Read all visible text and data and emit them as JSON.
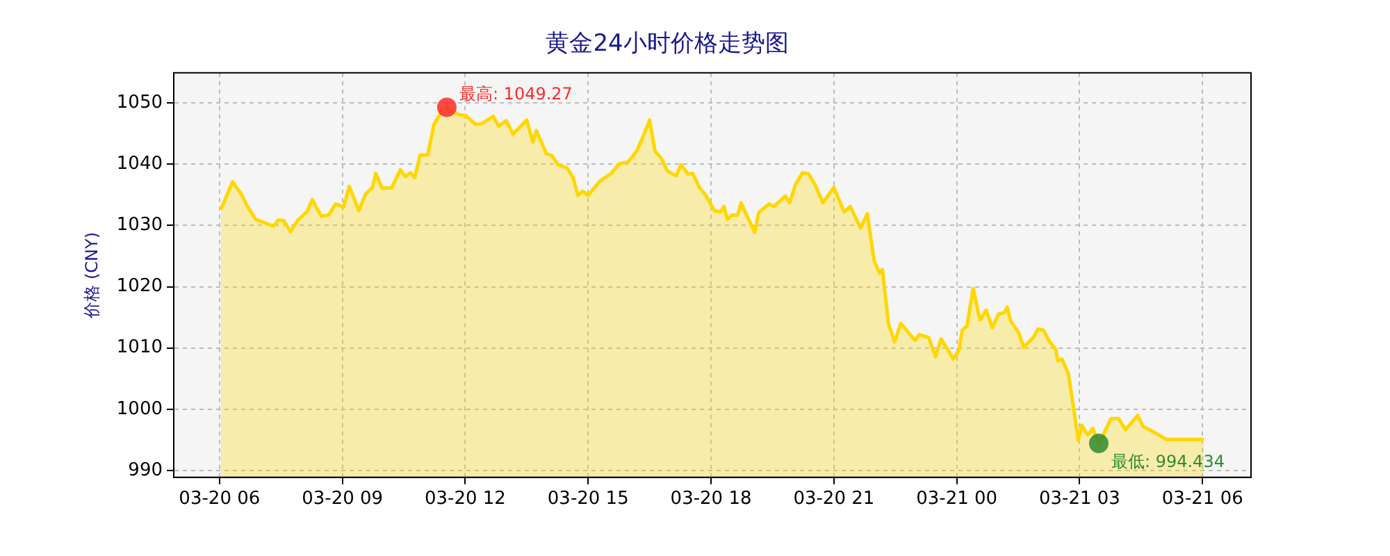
{
  "chart_data": {
    "type": "area",
    "title": "黄金24小时价格走势图",
    "ylabel": "价格 (CNY)",
    "xlim": [
      "--03-20T04:53",
      "--03-21T07:11"
    ],
    "xticks": [
      {
        "value": "--03-20T06:00",
        "label": "03-20 06"
      },
      {
        "value": "--03-20T09:00",
        "label": "03-20 09"
      },
      {
        "value": "--03-20T12:00",
        "label": "03-20 12"
      },
      {
        "value": "--03-20T15:00",
        "label": "03-20 15"
      },
      {
        "value": "--03-20T18:00",
        "label": "03-20 18"
      },
      {
        "value": "--03-20T21:00",
        "label": "03-20 21"
      },
      {
        "value": "--03-21T00:00",
        "label": "03-21 00"
      },
      {
        "value": "--03-21T03:00",
        "label": "03-21 03"
      },
      {
        "value": "--03-21T06:00",
        "label": "03-21 06"
      }
    ],
    "ylim": [
      988.9,
      1054.9
    ],
    "yticks": [
      990,
      1000,
      1010,
      1020,
      1030,
      1040,
      1050
    ],
    "grid": true,
    "legend": false,
    "series": [
      {
        "color": "#ffd700",
        "x": [
          "--03-20T06:02",
          "--03-20T06:19",
          "--03-20T06:31",
          "--03-20T06:41",
          "--03-20T06:53",
          "--03-20T07:19",
          "--03-20T07:26",
          "--03-20T07:34",
          "--03-20T07:44",
          "--03-20T07:55",
          "--03-20T08:08",
          "--03-20T08:16",
          "--03-20T08:29",
          "--03-20T08:40",
          "--03-20T08:50",
          "--03-20T09:02",
          "--03-20T09:10",
          "--03-20T09:24",
          "--03-20T09:34",
          "--03-20T09:44",
          "--03-20T09:49",
          "--03-20T09:58",
          "--03-20T10:12",
          "--03-20T10:25",
          "--03-20T10:32",
          "--03-20T10:40",
          "--03-20T10:46",
          "--03-20T10:54",
          "--03-20T11:05",
          "--03-20T11:14",
          "--03-20T11:25",
          "--03-20T11:33",
          "--03-20T11:50",
          "--03-20T12:01",
          "--03-20T12:15",
          "--03-20T12:24",
          "--03-20T12:41",
          "--03-20T12:49",
          "--03-20T13:00",
          "--03-20T13:10",
          "--03-20T13:30",
          "--03-20T13:39",
          "--03-20T13:44",
          "--03-20T13:59",
          "--03-20T14:07",
          "--03-20T14:16",
          "--03-20T14:29",
          "--03-20T14:38",
          "--03-20T14:45",
          "--03-20T14:52",
          "--03-20T15:00",
          "--03-20T15:17",
          "--03-20T15:34",
          "--03-20T15:46",
          "--03-20T15:58",
          "--03-20T16:11",
          "--03-20T16:22",
          "--03-20T16:30",
          "--03-20T16:38",
          "--03-20T16:47",
          "--03-20T16:56",
          "--03-20T17:09",
          "--03-20T17:16",
          "--03-20T17:26",
          "--03-20T17:33",
          "--03-20T17:43",
          "--03-20T17:53",
          "--03-20T18:05",
          "--03-20T18:14",
          "--03-20T18:19",
          "--03-20T18:24",
          "--03-20T18:31",
          "--03-20T18:39",
          "--03-20T18:44",
          "--03-20T18:55",
          "--03-20T19:04",
          "--03-20T19:10",
          "--03-20T19:25",
          "--03-20T19:32",
          "--03-20T19:49",
          "--03-20T19:55",
          "--03-20T20:04",
          "--03-20T20:14",
          "--03-20T20:23",
          "--03-20T20:33",
          "--03-20T20:44",
          "--03-20T21:00",
          "--03-20T21:15",
          "--03-20T21:24",
          "--03-20T21:39",
          "--03-20T21:49",
          "--03-20T21:59",
          "--03-20T22:07",
          "--03-20T22:11",
          "--03-20T22:20",
          "--03-20T22:29",
          "--03-20T22:38",
          "--03-20T22:59",
          "--03-20T23:05",
          "--03-20T23:19",
          "--03-20T23:29",
          "--03-20T23:37",
          "--03-20T23:55",
          "--03-21T00:03",
          "--03-21T00:08",
          "--03-21T00:15",
          "--03-21T00:24",
          "--03-21T00:34",
          "--03-21T00:43",
          "--03-21T00:52",
          "--03-21T01:01",
          "--03-21T01:10",
          "--03-21T01:14",
          "--03-21T01:19",
          "--03-21T01:31",
          "--03-21T01:38",
          "--03-21T01:52",
          "--03-21T01:59",
          "--03-21T02:07",
          "--03-21T02:16",
          "--03-21T02:25",
          "--03-21T02:28",
          "--03-21T02:34",
          "--03-21T02:43",
          "--03-21T02:52",
          "--03-21T02:58",
          "--03-21T03:03",
          "--03-21T03:12",
          "--03-21T03:19",
          "--03-21T03:28",
          "--03-21T03:37",
          "--03-21T03:46",
          "--03-21T03:57",
          "--03-21T04:07",
          "--03-21T04:16",
          "--03-21T04:25",
          "--03-21T04:33",
          "--03-21T04:45",
          "--03-21T05:07",
          "--03-21T06:02"
        ],
        "values": [
          1032.6,
          1037.1,
          1035.3,
          1033.1,
          1031.0,
          1029.9,
          1030.9,
          1030.8,
          1029.0,
          1030.9,
          1032.2,
          1034.2,
          1031.5,
          1031.7,
          1033.5,
          1033.0,
          1036.4,
          1032.4,
          1035.1,
          1036.2,
          1038.5,
          1036.1,
          1036.1,
          1039.1,
          1038.0,
          1038.6,
          1037.8,
          1041.5,
          1041.5,
          1046.4,
          1048.6,
          1049.27,
          1048.1,
          1047.9,
          1046.5,
          1046.6,
          1047.8,
          1046.2,
          1047.1,
          1044.9,
          1047.2,
          1043.6,
          1045.5,
          1041.7,
          1041.4,
          1039.9,
          1039.4,
          1037.8,
          1034.9,
          1035.6,
          1034.9,
          1037.2,
          1038.5,
          1040.1,
          1040.3,
          1042.1,
          1044.9,
          1047.2,
          1042.1,
          1041.0,
          1038.9,
          1038.1,
          1039.9,
          1038.4,
          1038.5,
          1036.2,
          1034.8,
          1032.4,
          1032.2,
          1033.1,
          1031.0,
          1031.7,
          1031.7,
          1033.7,
          1031.0,
          1028.9,
          1032.1,
          1033.5,
          1033.1,
          1034.8,
          1033.7,
          1036.7,
          1038.6,
          1038.4,
          1036.5,
          1033.7,
          1036.2,
          1032.2,
          1033.1,
          1029.6,
          1031.9,
          1024.2,
          1022.2,
          1022.8,
          1013.9,
          1011.0,
          1014.0,
          1011.2,
          1012.2,
          1011.7,
          1008.6,
          1011.5,
          1008.2,
          1009.6,
          1012.9,
          1013.6,
          1019.7,
          1014.6,
          1016.2,
          1013.3,
          1015.5,
          1015.8,
          1016.7,
          1014.4,
          1012.4,
          1010.1,
          1011.7,
          1013.1,
          1012.9,
          1011.0,
          1009.8,
          1007.9,
          1008.2,
          1006.0,
          999.6,
          994.9,
          997.4,
          995.8,
          996.9,
          994.434,
          996.4,
          998.5,
          998.5,
          996.7,
          997.8,
          999.0,
          997.2,
          996.5,
          995.1,
          995.1
        ]
      },
      {
        "type": "scatter",
        "color": "#ff2a2a",
        "x": [
          "--03-20T11:33"
        ],
        "values": [
          1049.27
        ]
      },
      {
        "type": "scatter",
        "color": "#2e8b2e",
        "x": [
          "--03-21T03:28"
        ],
        "values": [
          994.434
        ]
      }
    ],
    "annotations": [
      {
        "text": "最高: 1049.27",
        "x": "--03-20T11:33",
        "y": 1049.27
      },
      {
        "text": "最低: 994.434",
        "x": "--03-21T03:28",
        "y": 994.434
      }
    ]
  }
}
